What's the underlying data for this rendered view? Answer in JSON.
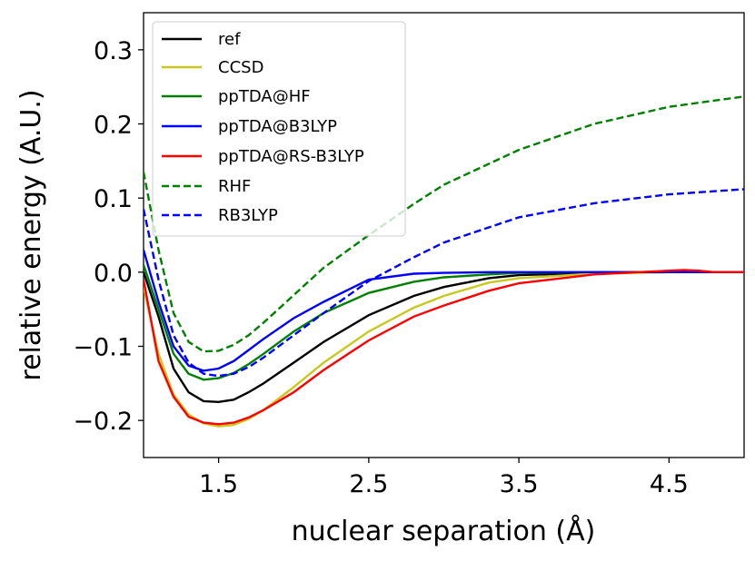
{
  "chart_data": {
    "type": "line",
    "title": "",
    "xlabel": "nuclear separation (Å)",
    "ylabel": "relative energy (A.U.)",
    "xlim": [
      1.0,
      5.0
    ],
    "ylim": [
      -0.25,
      0.35
    ],
    "xticks": [
      {
        "value": 1.5,
        "label": "1.5"
      },
      {
        "value": 2.5,
        "label": "2.5"
      },
      {
        "value": 3.5,
        "label": "3.5"
      },
      {
        "value": 4.5,
        "label": "4.5"
      }
    ],
    "yticks": [
      {
        "value": -0.2,
        "label": "−0.2"
      },
      {
        "value": -0.1,
        "label": "−0.1"
      },
      {
        "value": 0.0,
        "label": "0.0"
      },
      {
        "value": 0.1,
        "label": "0.1"
      },
      {
        "value": 0.2,
        "label": "0.2"
      },
      {
        "value": 0.3,
        "label": "0.3"
      }
    ],
    "grid": false,
    "legend_position": "top-left",
    "series": [
      {
        "name": "ref",
        "color": "#000000",
        "dash": "solid",
        "x": [
          1.0,
          1.1,
          1.2,
          1.3,
          1.4,
          1.5,
          1.6,
          1.7,
          1.8,
          2.0,
          2.2,
          2.5,
          2.8,
          3.0,
          3.3,
          3.5,
          4.0,
          4.5,
          5.0
        ],
        "y": [
          0.0,
          -0.06,
          -0.13,
          -0.162,
          -0.174,
          -0.175,
          -0.172,
          -0.162,
          -0.15,
          -0.122,
          -0.094,
          -0.058,
          -0.032,
          -0.02,
          -0.008,
          -0.004,
          -0.001,
          0.0,
          0.0
        ]
      },
      {
        "name": "CCSD",
        "color": "#c8c81e",
        "dash": "solid",
        "x": [
          1.0,
          1.1,
          1.2,
          1.3,
          1.4,
          1.5,
          1.6,
          1.7,
          1.8,
          2.0,
          2.2,
          2.5,
          2.8,
          3.0,
          3.3,
          3.5,
          4.0,
          4.5,
          5.0
        ],
        "y": [
          -0.02,
          -0.11,
          -0.165,
          -0.192,
          -0.204,
          -0.208,
          -0.206,
          -0.198,
          -0.186,
          -0.155,
          -0.122,
          -0.08,
          -0.048,
          -0.032,
          -0.014,
          -0.008,
          -0.002,
          0.0,
          0.0
        ]
      },
      {
        "name": "ppTDA@HF",
        "color": "#008000",
        "dash": "solid",
        "x": [
          1.0,
          1.1,
          1.2,
          1.3,
          1.4,
          1.5,
          1.6,
          1.7,
          1.8,
          2.0,
          2.2,
          2.5,
          2.8,
          3.0,
          3.3,
          3.5,
          4.0,
          4.5,
          5.0
        ],
        "y": [
          0.01,
          -0.05,
          -0.11,
          -0.137,
          -0.145,
          -0.143,
          -0.136,
          -0.124,
          -0.11,
          -0.08,
          -0.055,
          -0.028,
          -0.013,
          -0.007,
          -0.003,
          -0.001,
          0.0,
          0.0,
          0.0
        ]
      },
      {
        "name": "ppTDA@B3LYP",
        "color": "#0000ff",
        "dash": "solid",
        "x": [
          1.0,
          1.1,
          1.2,
          1.3,
          1.4,
          1.5,
          1.6,
          1.7,
          1.8,
          2.0,
          2.2,
          2.5,
          2.8,
          3.0,
          3.3,
          3.5,
          4.0,
          4.5,
          5.0
        ],
        "y": [
          0.03,
          -0.04,
          -0.1,
          -0.126,
          -0.133,
          -0.13,
          -0.12,
          -0.105,
          -0.09,
          -0.062,
          -0.04,
          -0.01,
          -0.002,
          -0.001,
          0.0,
          0.0,
          0.0,
          0.0,
          0.0
        ]
      },
      {
        "name": "ppTDA@RS-B3LYP",
        "color": "#ff0000",
        "dash": "solid",
        "x": [
          1.0,
          1.1,
          1.2,
          1.3,
          1.4,
          1.5,
          1.6,
          1.7,
          1.8,
          2.0,
          2.2,
          2.5,
          2.8,
          3.0,
          3.3,
          3.5,
          4.0,
          4.3,
          4.5,
          4.6,
          4.7,
          4.8,
          5.0
        ],
        "y": [
          -0.01,
          -0.12,
          -0.168,
          -0.195,
          -0.203,
          -0.205,
          -0.203,
          -0.196,
          -0.186,
          -0.162,
          -0.132,
          -0.092,
          -0.06,
          -0.045,
          -0.025,
          -0.015,
          -0.003,
          0.0,
          0.002,
          0.003,
          0.002,
          0.0,
          0.0
        ]
      },
      {
        "name": "RHF",
        "color": "#008000",
        "dash": "dashed",
        "x": [
          1.0,
          1.1,
          1.2,
          1.3,
          1.4,
          1.5,
          1.6,
          1.7,
          1.8,
          2.0,
          2.2,
          2.5,
          2.8,
          3.0,
          3.5,
          4.0,
          4.5,
          5.0
        ],
        "y": [
          0.135,
          0.03,
          -0.055,
          -0.094,
          -0.107,
          -0.106,
          -0.098,
          -0.085,
          -0.068,
          -0.031,
          0.006,
          0.05,
          0.092,
          0.118,
          0.165,
          0.2,
          0.223,
          0.237
        ]
      },
      {
        "name": "RB3LYP",
        "color": "#0000ff",
        "dash": "dashed",
        "x": [
          1.0,
          1.1,
          1.2,
          1.3,
          1.4,
          1.5,
          1.6,
          1.7,
          1.8,
          2.0,
          2.2,
          2.5,
          2.8,
          3.0,
          3.5,
          4.0,
          4.5,
          5.0
        ],
        "y": [
          0.085,
          -0.01,
          -0.085,
          -0.122,
          -0.137,
          -0.14,
          -0.137,
          -0.128,
          -0.115,
          -0.085,
          -0.055,
          -0.012,
          0.02,
          0.04,
          0.074,
          0.093,
          0.105,
          0.112
        ]
      }
    ]
  }
}
